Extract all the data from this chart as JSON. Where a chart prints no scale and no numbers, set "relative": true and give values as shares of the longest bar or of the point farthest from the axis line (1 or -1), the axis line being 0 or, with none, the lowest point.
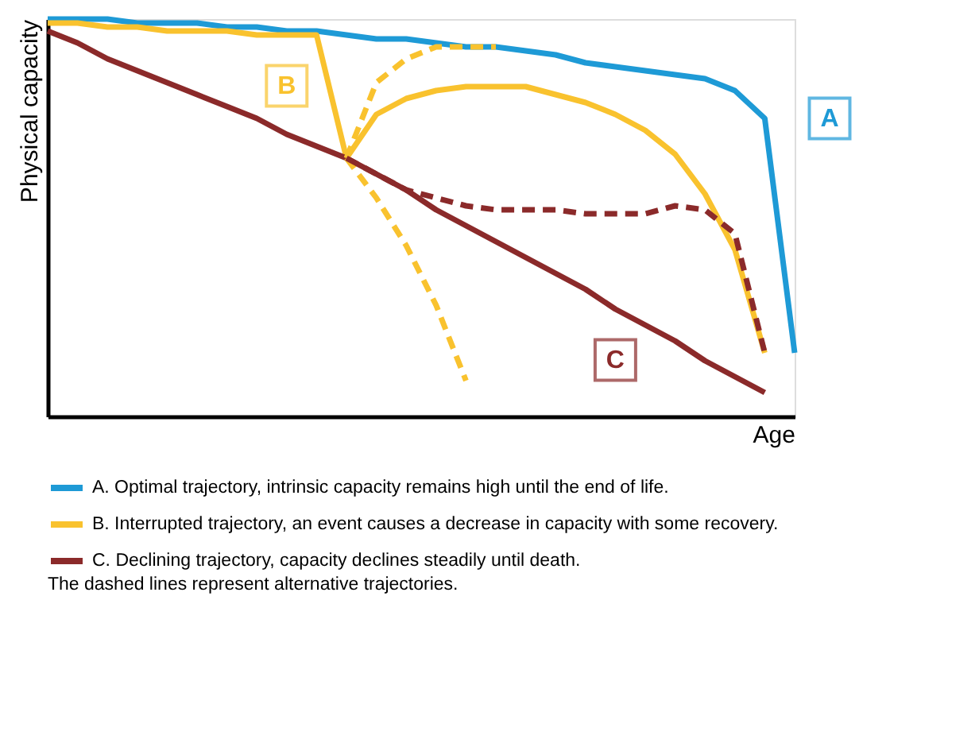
{
  "chart_data": {
    "type": "line",
    "relative": true,
    "xlabel": "Age",
    "ylabel": "Physical capacity",
    "tick_labels": false,
    "legend": "bottom",
    "categories": [
      null,
      null,
      null,
      null,
      null,
      null,
      null,
      null,
      null,
      null,
      null,
      null,
      null,
      null,
      null,
      null,
      null,
      null,
      null,
      null,
      null,
      null,
      null,
      null,
      null,
      null
    ],
    "series": [
      {
        "name": "A. Optimal trajectory, intrinsic capacity remains high until the end of life.",
        "color": "#1e9ad6",
        "line_style": "solid",
        "values": [
          1.0,
          1.0,
          1.0,
          0.99,
          0.99,
          0.99,
          0.98,
          0.98,
          0.97,
          0.97,
          0.96,
          0.95,
          0.95,
          0.94,
          0.93,
          0.93,
          0.92,
          0.91,
          0.89,
          0.88,
          0.87,
          0.86,
          0.85,
          0.82,
          0.75,
          0.16
        ]
      },
      {
        "name": "B. Interrupted trajectory, an event causes a decrease in capacity with some recovery.",
        "color": "#f9c22e",
        "line_style": "solid",
        "values": [
          0.99,
          0.99,
          0.98,
          0.98,
          0.97,
          0.97,
          0.97,
          0.96,
          0.96,
          0.96,
          0.65,
          0.76,
          0.8,
          0.82,
          0.83,
          0.83,
          0.83,
          0.81,
          0.79,
          0.76,
          0.72,
          0.66,
          0.56,
          0.42,
          0.16,
          null
        ]
      },
      {
        "name": "C. Declining trajectory, capacity declines steadily until death.",
        "color": "#8b2a2a",
        "line_style": "solid",
        "values": [
          0.97,
          0.94,
          0.9,
          0.87,
          0.84,
          0.81,
          0.78,
          0.75,
          0.71,
          0.68,
          0.65,
          0.61,
          0.57,
          0.52,
          0.48,
          0.44,
          0.4,
          0.36,
          0.32,
          0.27,
          0.23,
          0.19,
          0.14,
          0.1,
          0.06,
          null
        ]
      },
      {
        "color": "#f9c22e",
        "line_style": "dashed",
        "values": [
          null,
          null,
          null,
          null,
          null,
          null,
          null,
          null,
          null,
          null,
          0.65,
          0.84,
          0.9,
          0.93,
          0.93,
          0.93,
          null,
          null,
          null,
          null,
          null,
          null,
          null,
          null,
          null,
          null
        ]
      },
      {
        "color": "#f9c22e",
        "line_style": "dashed",
        "values": [
          null,
          null,
          null,
          null,
          null,
          null,
          null,
          null,
          null,
          null,
          0.65,
          0.55,
          0.43,
          0.28,
          0.09,
          null,
          null,
          null,
          null,
          null,
          null,
          null,
          null,
          null,
          null,
          null
        ]
      },
      {
        "color": "#8b2a2a",
        "line_style": "dashed",
        "values": [
          null,
          null,
          null,
          null,
          null,
          null,
          null,
          null,
          null,
          null,
          0.65,
          0.61,
          0.57,
          0.55,
          0.53,
          0.52,
          0.52,
          0.52,
          0.51,
          0.51,
          0.51,
          0.53,
          0.52,
          0.46,
          0.16,
          null
        ]
      }
    ],
    "annotations": [
      "A",
      "B",
      "C",
      "The dashed lines represent alternative trajectories."
    ]
  }
}
